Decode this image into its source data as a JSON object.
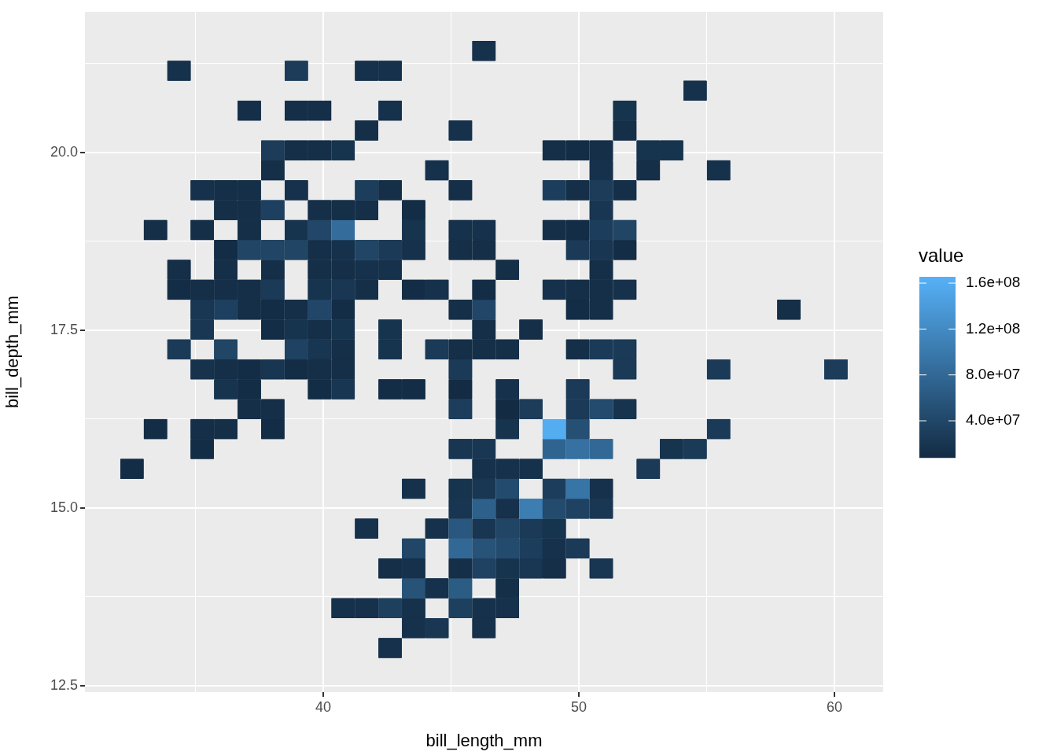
{
  "chart_data": {
    "type": "scatter",
    "marker": "square",
    "grid": true,
    "xlabel": "bill_length_mm",
    "ylabel": "bill_depth_mm",
    "clabel": "value",
    "xlim": [
      30.68,
      61.91
    ],
    "ylim": [
      12.41,
      21.98
    ],
    "xticks": [
      {
        "value": 35,
        "label": null
      },
      40,
      {
        "value": 45,
        "label": null
      },
      50,
      {
        "value": 55,
        "label": null
      },
      60
    ],
    "yticks": [
      {
        "value": 12.5,
        "label": "12.5"
      },
      {
        "value": 13.75,
        "label": null
      },
      {
        "value": 15,
        "label": "15.0"
      },
      {
        "value": 16.25,
        "label": null
      },
      {
        "value": 17.5,
        "label": "17.5"
      },
      {
        "value": 18.75,
        "label": null
      },
      {
        "value": 20,
        "label": "20.0"
      },
      {
        "value": 21.25,
        "label": null
      }
    ],
    "clim": [
      7800000.0,
      165500000.0
    ],
    "cticks": [
      {
        "value": 40000000.0,
        "label": "4.0e+07"
      },
      {
        "value": 80000000.0,
        "label": "8.0e+07"
      },
      {
        "value": 120000000.0,
        "label": "1.2e+08"
      },
      {
        "value": 160000000.0,
        "label": "1.6e+08"
      }
    ],
    "series": [
      {
        "x": [
          46.29
        ],
        "values": [
          21.43
        ],
        "cvalues": [
          15000000.0
        ],
        "colors": [
          "#16314b"
        ]
      },
      {
        "x": [
          34.36,
          38.95,
          41.7,
          42.62
        ],
        "values": [
          21.15,
          21.15,
          21.15,
          21.15
        ],
        "cvalues": [
          15000000.0,
          28000000.0,
          15000000.0,
          15000000.0
        ],
        "colors": [
          "#16314b",
          "#1c3c5a",
          "#16314b",
          "#16314b"
        ]
      },
      {
        "x": [
          54.55
        ],
        "values": [
          20.87
        ],
        "cvalues": [
          15000000.0
        ],
        "colors": [
          "#16314b"
        ]
      },
      {
        "x": [
          37.11,
          38.95,
          39.86,
          42.62,
          51.8
        ],
        "values": [
          20.59,
          20.59,
          20.59,
          20.59,
          20.59
        ],
        "cvalues": [
          12000000.0,
          12000000.0,
          12000000.0,
          15000000.0,
          18000000.0
        ],
        "colors": [
          "#152f48",
          "#152f48",
          "#152f48",
          "#16314b",
          "#17344f"
        ]
      },
      {
        "x": [
          41.7,
          45.37,
          51.8
        ],
        "values": [
          20.31,
          20.31,
          20.31
        ],
        "cvalues": [
          12000000.0,
          15000000.0,
          12000000.0
        ],
        "colors": [
          "#152f48",
          "#16314b",
          "#152f48"
        ]
      },
      {
        "x": [
          38.03,
          38.95,
          39.86,
          40.78,
          49.04,
          49.96,
          50.88,
          52.72,
          53.63
        ],
        "values": [
          20.03,
          20.03,
          20.03,
          20.03,
          20.03,
          20.03,
          20.03,
          20.03,
          20.03
        ],
        "cvalues": [
          28000000.0,
          12000000.0,
          12000000.0,
          18000000.0,
          12000000.0,
          10000000.0,
          12000000.0,
          18000000.0,
          18000000.0
        ],
        "colors": [
          "#1c3c5a",
          "#152f48",
          "#152f48",
          "#17344f",
          "#152f48",
          "#142d46",
          "#152f48",
          "#17344f",
          "#17344f"
        ]
      },
      {
        "x": [
          38.03,
          44.45,
          50.88,
          52.72,
          55.47
        ],
        "values": [
          19.75,
          19.75,
          19.75,
          19.75,
          19.75
        ],
        "cvalues": [
          12000000.0,
          15000000.0,
          15000000.0,
          12000000.0,
          15000000.0
        ],
        "colors": [
          "#152f48",
          "#16314b",
          "#16314b",
          "#152f48",
          "#16314b"
        ]
      },
      {
        "x": [
          35.27,
          36.19,
          37.11,
          38.95,
          41.7,
          42.62,
          45.37,
          49.04,
          49.96,
          50.88,
          51.8
        ],
        "values": [
          19.47,
          19.47,
          19.47,
          19.47,
          19.47,
          19.47,
          19.47,
          19.47,
          19.47,
          19.47,
          19.47
        ],
        "cvalues": [
          15000000.0,
          13000000.0,
          13000000.0,
          15000000.0,
          30000000.0,
          12000000.0,
          12000000.0,
          30000000.0,
          13000000.0,
          28000000.0,
          12000000.0
        ],
        "colors": [
          "#16314b",
          "#152f49",
          "#152f49",
          "#16314b",
          "#1c3e5c",
          "#152f48",
          "#152f48",
          "#1c3e5c",
          "#152f49",
          "#1c3c5a",
          "#152f48"
        ]
      },
      {
        "x": [
          36.19,
          37.11,
          38.03,
          39.86,
          40.78,
          41.7,
          43.54,
          50.88
        ],
        "values": [
          19.19,
          19.19,
          19.19,
          19.19,
          19.19,
          19.19,
          19.19,
          19.19
        ],
        "cvalues": [
          12000000.0,
          12000000.0,
          33000000.0,
          12000000.0,
          12000000.0,
          12000000.0,
          10000000.0,
          20000000.0
        ],
        "colors": [
          "#152f48",
          "#152f48",
          "#1e4060",
          "#152f48",
          "#152f48",
          "#152f48",
          "#142d46",
          "#183551"
        ]
      },
      {
        "x": [
          33.44,
          35.27,
          37.11,
          38.95,
          39.86,
          40.78,
          43.54,
          45.37,
          46.29,
          49.04,
          49.96,
          50.88,
          51.8
        ],
        "values": [
          18.91,
          18.91,
          18.91,
          18.91,
          18.91,
          18.91,
          18.91,
          18.91,
          18.91,
          18.91,
          18.91,
          18.91,
          18.91
        ],
        "cvalues": [
          12000000.0,
          12000000.0,
          12000000.0,
          18000000.0,
          40000000.0,
          85000000.0,
          18000000.0,
          15000000.0,
          15000000.0,
          12000000.0,
          10000000.0,
          30000000.0,
          38000000.0
        ],
        "colors": [
          "#152f48",
          "#152f48",
          "#152f48",
          "#17344f",
          "#214668",
          "#346d9b",
          "#17344f",
          "#16314b",
          "#16314b",
          "#152f48",
          "#142d46",
          "#1c3e5c",
          "#204565"
        ]
      },
      {
        "x": [
          36.19,
          37.11,
          38.03,
          38.95,
          39.86,
          40.78,
          41.7,
          42.62,
          43.54,
          45.37,
          46.29,
          49.96,
          50.88,
          51.8
        ],
        "values": [
          18.63,
          18.63,
          18.63,
          18.63,
          18.63,
          18.63,
          18.63,
          18.63,
          18.63,
          18.63,
          18.63,
          18.63,
          18.63,
          18.63
        ],
        "cvalues": [
          10000000.0,
          38000000.0,
          38000000.0,
          38000000.0,
          12000000.0,
          15000000.0,
          38000000.0,
          25000000.0,
          15000000.0,
          12000000.0,
          12000000.0,
          25000000.0,
          20000000.0,
          10000000.0
        ],
        "colors": [
          "#142d46",
          "#204565",
          "#204565",
          "#204565",
          "#152f48",
          "#16314b",
          "#204565",
          "#1a3a57",
          "#16314b",
          "#152f48",
          "#152f48",
          "#1a3a57",
          "#183551",
          "#142d46"
        ]
      },
      {
        "x": [
          34.36,
          36.19,
          38.03,
          39.86,
          40.78,
          41.7,
          42.62,
          47.21,
          50.88
        ],
        "values": [
          18.35,
          18.35,
          18.35,
          18.35,
          18.35,
          18.35,
          18.35,
          18.35,
          18.35
        ],
        "cvalues": [
          12000000.0,
          12000000.0,
          12000000.0,
          12000000.0,
          12000000.0,
          15000000.0,
          15000000.0,
          12000000.0,
          12000000.0
        ],
        "colors": [
          "#152f48",
          "#152f48",
          "#152f48",
          "#152f48",
          "#152f48",
          "#16314b",
          "#16314b",
          "#152f48",
          "#152f48"
        ]
      },
      {
        "x": [
          34.36,
          35.27,
          36.19,
          37.11,
          38.03,
          39.86,
          40.78,
          41.7,
          43.54,
          44.45,
          46.29,
          49.04,
          49.96,
          50.88,
          51.8
        ],
        "values": [
          18.07,
          18.07,
          18.07,
          18.07,
          18.07,
          18.07,
          18.07,
          18.07,
          18.07,
          18.07,
          18.07,
          18.07,
          18.07,
          18.07,
          18.07
        ],
        "cvalues": [
          10000000.0,
          12000000.0,
          12000000.0,
          12000000.0,
          25000000.0,
          18000000.0,
          22000000.0,
          12000000.0,
          10000000.0,
          15000000.0,
          10000000.0,
          15000000.0,
          12000000.0,
          12000000.0,
          15000000.0
        ],
        "colors": [
          "#142d46",
          "#152f48",
          "#152f48",
          "#152f48",
          "#1a3a57",
          "#17344f",
          "#193753",
          "#152f48",
          "#142d46",
          "#16314b",
          "#142d46",
          "#16314b",
          "#152f48",
          "#152f48",
          "#16314b"
        ]
      },
      {
        "x": [
          35.27,
          36.19,
          37.11,
          38.03,
          38.95,
          39.86,
          40.78,
          45.37,
          46.29,
          49.96,
          50.88,
          58.22
        ],
        "values": [
          17.79,
          17.79,
          17.79,
          17.79,
          17.79,
          17.79,
          17.79,
          17.79,
          17.79,
          17.79,
          17.79,
          17.79
        ],
        "cvalues": [
          22000000.0,
          33000000.0,
          12000000.0,
          10000000.0,
          12000000.0,
          40000000.0,
          10000000.0,
          12000000.0,
          40000000.0,
          10000000.0,
          12000000.0,
          12000000.0
        ],
        "colors": [
          "#193753",
          "#1e4060",
          "#152f48",
          "#142d46",
          "#152f48",
          "#214668",
          "#142d46",
          "#152f48",
          "#214668",
          "#142d46",
          "#152f48",
          "#152f48"
        ]
      },
      {
        "x": [
          35.27,
          38.03,
          38.95,
          39.86,
          40.78,
          42.62,
          46.29,
          48.13
        ],
        "values": [
          17.51,
          17.51,
          17.51,
          17.51,
          17.51,
          17.51,
          17.51,
          17.51
        ],
        "cvalues": [
          22000000.0,
          10000000.0,
          18000000.0,
          13000000.0,
          18000000.0,
          18000000.0,
          12000000.0,
          12000000.0
        ],
        "colors": [
          "#193753",
          "#142d46",
          "#17344f",
          "#152f49",
          "#17344f",
          "#17344f",
          "#152f48",
          "#152f48"
        ]
      },
      {
        "x": [
          34.36,
          36.19,
          38.95,
          39.86,
          40.78,
          42.62,
          44.45,
          45.37,
          46.29,
          47.21,
          49.96,
          50.88,
          51.8
        ],
        "values": [
          17.23,
          17.23,
          17.23,
          17.23,
          17.23,
          17.23,
          17.23,
          17.23,
          17.23,
          17.23,
          17.23,
          17.23,
          17.23
        ],
        "cvalues": [
          25000000.0,
          38000000.0,
          35000000.0,
          20000000.0,
          12000000.0,
          18000000.0,
          25000000.0,
          12000000.0,
          12000000.0,
          12000000.0,
          12000000.0,
          25000000.0,
          25000000.0
        ],
        "colors": [
          "#1a3a57",
          "#204565",
          "#1f4262",
          "#183551",
          "#152f48",
          "#17344f",
          "#1a3a57",
          "#152f48",
          "#152f48",
          "#152f48",
          "#152f48",
          "#1a3a57",
          "#1a3a57"
        ]
      },
      {
        "x": [
          35.27,
          36.19,
          37.11,
          38.03,
          38.95,
          39.86,
          40.78,
          45.37,
          51.8,
          55.47,
          60.06
        ],
        "values": [
          16.95,
          16.95,
          16.95,
          16.95,
          16.95,
          16.95,
          16.95,
          16.95,
          16.95,
          16.95,
          16.95
        ],
        "cvalues": [
          16000000.0,
          12000000.0,
          10000000.0,
          20000000.0,
          10000000.0,
          12000000.0,
          12000000.0,
          25000000.0,
          25000000.0,
          25000000.0,
          28000000.0
        ],
        "colors": [
          "#16324c",
          "#152f48",
          "#142d46",
          "#183551",
          "#142d46",
          "#152f48",
          "#152f48",
          "#1a3a57",
          "#1a3a57",
          "#1a3a57",
          "#1c3c5a"
        ]
      },
      {
        "x": [
          36.19,
          37.11,
          39.86,
          40.78,
          42.62,
          43.54,
          45.37,
          47.21,
          49.96
        ],
        "values": [
          16.67,
          16.67,
          16.67,
          16.67,
          16.67,
          16.67,
          16.67,
          16.67,
          16.67
        ],
        "cvalues": [
          18000000.0,
          10000000.0,
          10000000.0,
          20000000.0,
          10000000.0,
          10000000.0,
          8000000.0,
          15000000.0,
          25000000.0
        ],
        "colors": [
          "#17344f",
          "#142d46",
          "#142d46",
          "#183551",
          "#142d46",
          "#142d46",
          "#132b43",
          "#16314b",
          "#1a3a57"
        ]
      },
      {
        "x": [
          37.11,
          38.03,
          45.37,
          47.21,
          48.13,
          49.96,
          50.88,
          51.8
        ],
        "values": [
          16.39,
          16.39,
          16.39,
          16.39,
          16.39,
          16.39,
          16.39,
          16.39
        ],
        "cvalues": [
          12000000.0,
          13000000.0,
          30000000.0,
          8000000.0,
          28000000.0,
          25000000.0,
          45000000.0,
          18000000.0
        ],
        "colors": [
          "#152f48",
          "#152f49",
          "#1c3e5c",
          "#132b43",
          "#1c3c5a",
          "#1a3a57",
          "#234b6d",
          "#17344f"
        ]
      },
      {
        "x": [
          33.44,
          35.27,
          36.19,
          38.03,
          47.21,
          49.04,
          49.96,
          55.47
        ],
        "values": [
          16.11,
          16.11,
          16.11,
          16.11,
          16.11,
          16.11,
          16.11,
          16.11
        ],
        "cvalues": [
          10000000.0,
          12000000.0,
          12000000.0,
          10000000.0,
          18000000.0,
          160000000.0,
          50000000.0,
          25000000.0
        ],
        "colors": [
          "#142d46",
          "#152f48",
          "#152f48",
          "#142d46",
          "#17344f",
          "#54acf1",
          "#254f73",
          "#1a3a57"
        ]
      },
      {
        "x": [
          35.27,
          45.37,
          46.29,
          49.04,
          49.96,
          50.88,
          53.63,
          54.55
        ],
        "values": [
          15.83,
          15.83,
          15.83,
          15.83,
          15.83,
          15.83,
          15.83,
          15.83
        ],
        "cvalues": [
          10000000.0,
          20000000.0,
          22000000.0,
          75000000.0,
          90000000.0,
          80000000.0,
          18000000.0,
          25000000.0
        ],
        "colors": [
          "#142d46",
          "#183551",
          "#193753",
          "#306490",
          "#3671a1",
          "#326895",
          "#17344f",
          "#1a3a57"
        ]
      },
      {
        "x": [
          32.52,
          46.29,
          47.21,
          48.13,
          52.72
        ],
        "values": [
          15.55,
          15.55,
          15.55,
          15.55,
          15.55
        ],
        "cvalues": [
          10000000.0,
          15000000.0,
          15000000.0,
          15000000.0,
          25000000.0
        ],
        "colors": [
          "#142d46",
          "#16314b",
          "#16314b",
          "#16314b",
          "#1a3a57"
        ]
      },
      {
        "x": [
          43.54,
          45.37,
          46.29,
          47.21,
          49.04,
          49.96,
          50.88
        ],
        "values": [
          15.27,
          15.27,
          15.27,
          15.27,
          15.27,
          15.27,
          15.27
        ],
        "cvalues": [
          15000000.0,
          18000000.0,
          22000000.0,
          45000000.0,
          30000000.0,
          95000000.0,
          15000000.0
        ],
        "colors": [
          "#16314b",
          "#17344f",
          "#193753",
          "#234b6d",
          "#1c3e5c",
          "#3875a7",
          "#16314b"
        ]
      },
      {
        "x": [
          45.37,
          46.29,
          47.21,
          48.13,
          49.04,
          49.96,
          50.88
        ],
        "values": [
          14.99,
          14.99,
          14.99,
          14.99,
          14.99,
          14.99,
          14.99
        ],
        "cvalues": [
          20000000.0,
          70000000.0,
          15000000.0,
          105000000.0,
          45000000.0,
          35000000.0,
          22000000.0
        ],
        "colors": [
          "#183551",
          "#2d608a",
          "#16314b",
          "#3c7eb2",
          "#234b6d",
          "#1f4262",
          "#193753"
        ]
      },
      {
        "x": [
          41.7,
          44.45,
          45.37,
          46.29,
          47.21,
          48.13,
          49.04
        ],
        "values": [
          14.71,
          14.71,
          14.71,
          14.71,
          14.71,
          14.71,
          14.71
        ],
        "cvalues": [
          15000000.0,
          15000000.0,
          60000000.0,
          20000000.0,
          38000000.0,
          25000000.0,
          18000000.0
        ],
        "colors": [
          "#16314b",
          "#16314b",
          "#29577f",
          "#183551",
          "#204565",
          "#1a3a57",
          "#17344f"
        ]
      },
      {
        "x": [
          43.54,
          45.37,
          46.29,
          47.21,
          48.13,
          49.04,
          49.96
        ],
        "values": [
          14.43,
          14.43,
          14.43,
          14.43,
          14.43,
          14.43,
          14.43
        ],
        "cvalues": [
          40000000.0,
          80000000.0,
          55000000.0,
          45000000.0,
          30000000.0,
          15000000.0,
          25000000.0
        ],
        "colors": [
          "#214668",
          "#326895",
          "#275379",
          "#234b6d",
          "#1c3e5c",
          "#16314b",
          "#1a3a57"
        ]
      },
      {
        "x": [
          42.62,
          43.54,
          45.37,
          46.29,
          47.21,
          48.13,
          49.04,
          50.88
        ],
        "values": [
          14.15,
          14.15,
          14.15,
          14.15,
          14.15,
          14.15,
          14.15,
          14.15
        ],
        "cvalues": [
          12000000.0,
          15000000.0,
          12000000.0,
          35000000.0,
          18000000.0,
          22000000.0,
          12000000.0,
          20000000.0
        ],
        "colors": [
          "#152f48",
          "#16314b",
          "#152f48",
          "#1f4262",
          "#17344f",
          "#193753",
          "#152f48",
          "#183551"
        ]
      },
      {
        "x": [
          43.54,
          44.45,
          45.37,
          47.21
        ],
        "values": [
          13.87,
          13.87,
          13.87,
          13.87
        ],
        "cvalues": [
          55000000.0,
          15000000.0,
          65000000.0,
          12000000.0
        ],
        "colors": [
          "#275379",
          "#16314b",
          "#2b5c84",
          "#152f48"
        ]
      },
      {
        "x": [
          40.78,
          41.7,
          42.62,
          43.54,
          45.37,
          46.29,
          47.21
        ],
        "values": [
          13.59,
          13.59,
          13.59,
          13.59,
          13.59,
          13.59,
          13.59
        ],
        "cvalues": [
          15000000.0,
          15000000.0,
          32000000.0,
          15000000.0,
          32000000.0,
          15000000.0,
          15000000.0
        ],
        "colors": [
          "#16314b",
          "#16314b",
          "#1d405f",
          "#16314b",
          "#1d405f",
          "#16314b",
          "#16314b"
        ]
      },
      {
        "x": [
          43.54,
          44.45,
          46.29
        ],
        "values": [
          13.31,
          13.31,
          13.31
        ],
        "cvalues": [
          15000000.0,
          22000000.0,
          15000000.0
        ],
        "colors": [
          "#16314b",
          "#193753",
          "#16314b"
        ]
      },
      {
        "x": [
          42.62
        ],
        "values": [
          13.03
        ],
        "cvalues": [
          15000000.0
        ],
        "colors": [
          "#16314b"
        ]
      }
    ]
  }
}
